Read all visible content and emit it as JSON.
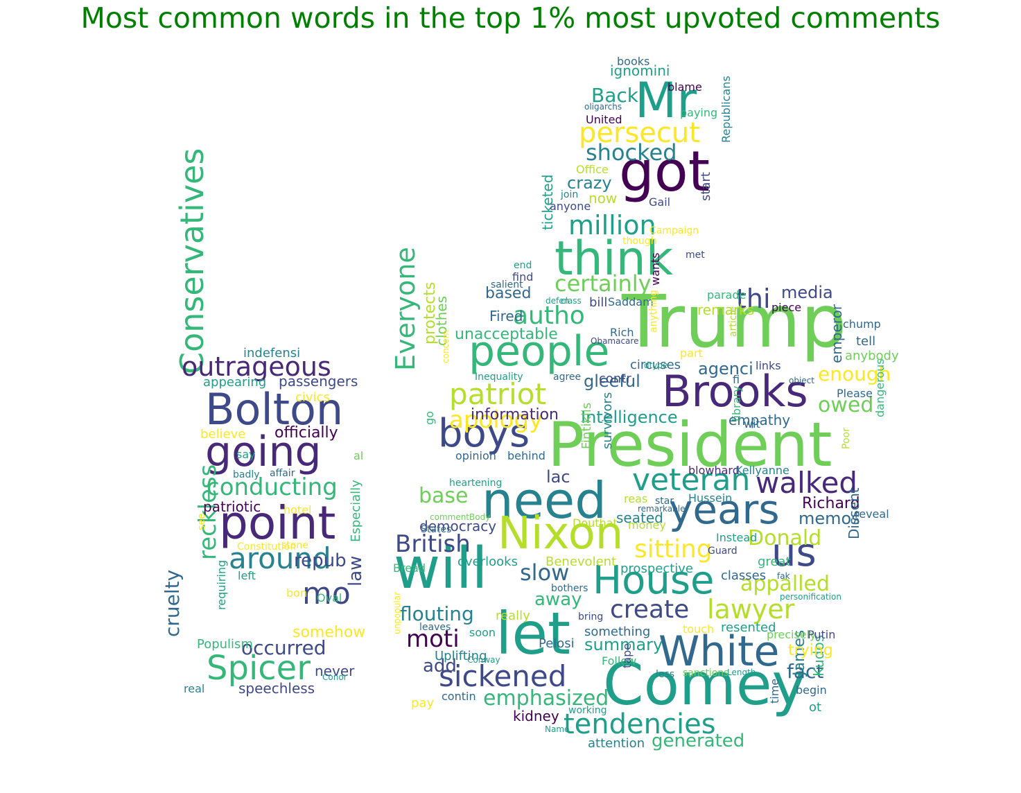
{
  "title": "Most common words in the top 1% most upvoted comments",
  "title_color": "#008000",
  "palette": [
    "#440154",
    "#482878",
    "#3e4989",
    "#31688e",
    "#26828e",
    "#1f9e89",
    "#35b779",
    "#6ece58",
    "#b5de2b",
    "#fde725"
  ],
  "words": [
    {
      "t": "Trump",
      "c": 7
    },
    {
      "t": "President",
      "c": 7
    },
    {
      "t": "Comey",
      "c": 5
    },
    {
      "t": "will",
      "c": 5
    },
    {
      "t": "need",
      "c": 4
    },
    {
      "t": "Nixon",
      "c": 8
    },
    {
      "t": "got",
      "c": 0
    },
    {
      "t": "Mr",
      "c": 5
    },
    {
      "t": "let",
      "c": 5
    },
    {
      "t": "people",
      "c": 6
    },
    {
      "t": "think",
      "c": 6
    },
    {
      "t": "Brooks",
      "c": 1
    },
    {
      "t": "White",
      "c": 3
    },
    {
      "t": "House",
      "c": 5
    },
    {
      "t": "years",
      "c": 3
    },
    {
      "t": "us",
      "c": 2
    },
    {
      "t": "boys",
      "c": 2
    },
    {
      "t": "Bolton",
      "c": 2
    },
    {
      "t": "going",
      "c": 1
    },
    {
      "t": "point",
      "c": 1
    },
    {
      "t": "Spicer",
      "c": 6
    },
    {
      "t": "veteran",
      "c": 5
    },
    {
      "t": "walked",
      "c": 1
    },
    {
      "t": "sickened",
      "c": 2
    },
    {
      "t": "tendencies",
      "c": 5
    },
    {
      "t": "Everyone",
      "c": 6
    },
    {
      "t": "Conservatives",
      "c": 6
    },
    {
      "t": "outrageous",
      "c": 1
    },
    {
      "t": "patriot",
      "c": 8
    },
    {
      "t": "persecut",
      "c": 9
    },
    {
      "t": "million",
      "c": 5
    },
    {
      "t": "around",
      "c": 4
    },
    {
      "t": "mo",
      "c": 2
    },
    {
      "t": "lawyer",
      "c": 8
    },
    {
      "t": "create",
      "c": 2
    },
    {
      "t": "thi",
      "c": 2
    },
    {
      "t": "shocked",
      "c": 4
    },
    {
      "t": "autho",
      "c": 6
    },
    {
      "t": "sitting",
      "c": 9
    },
    {
      "t": "certainly",
      "c": 7
    },
    {
      "t": "conducting",
      "c": 6
    },
    {
      "t": "apology",
      "c": 9
    },
    {
      "t": "British",
      "c": 2
    },
    {
      "t": "moti",
      "c": 0
    },
    {
      "t": "occurred",
      "c": 2
    },
    {
      "t": "emphasized",
      "c": 6
    },
    {
      "t": "slow",
      "c": 3
    },
    {
      "t": "Donald",
      "c": 8
    },
    {
      "t": "appalled",
      "c": 8
    },
    {
      "t": "reckless",
      "c": 6
    },
    {
      "t": "owed",
      "c": 7
    },
    {
      "t": "enough",
      "c": 9
    },
    {
      "t": "fact",
      "c": 3
    },
    {
      "t": "flouting",
      "c": 4
    },
    {
      "t": "generated",
      "c": 6
    },
    {
      "t": "cruelty",
      "c": 3
    },
    {
      "t": "base",
      "c": 7
    },
    {
      "t": "summary",
      "c": 5
    },
    {
      "t": "repub",
      "c": 2
    },
    {
      "t": "Back",
      "c": 5
    },
    {
      "t": "crazy",
      "c": 4
    },
    {
      "t": "memos",
      "c": 3
    },
    {
      "t": "Richard",
      "c": 0
    },
    {
      "t": "gleeful",
      "c": 3
    },
    {
      "t": "Intelligence",
      "c": 5
    },
    {
      "t": "agenci",
      "c": 3
    },
    {
      "t": "media",
      "c": 2
    },
    {
      "t": "away",
      "c": 6
    },
    {
      "t": "lac",
      "c": 2
    },
    {
      "t": "add",
      "c": 2
    },
    {
      "t": "law",
      "c": 2
    },
    {
      "t": "patriotic",
      "c": 0
    },
    {
      "t": "passengers",
      "c": 2
    },
    {
      "t": "officially",
      "c": 0
    },
    {
      "t": "based",
      "c": 3
    },
    {
      "t": "ticketed",
      "c": 5
    },
    {
      "t": "Dissent",
      "c": 3
    },
    {
      "t": "emperor",
      "c": 3
    },
    {
      "t": "information",
      "c": 1
    },
    {
      "t": "unacceptable",
      "c": 6
    },
    {
      "t": "protects",
      "c": 8
    },
    {
      "t": "clothes",
      "c": 7
    },
    {
      "t": "democracy",
      "c": 2
    },
    {
      "t": "indefensi",
      "c": 4
    },
    {
      "t": "Fired",
      "c": 3
    },
    {
      "t": "empathy",
      "c": 3
    },
    {
      "t": "James",
      "c": 4
    },
    {
      "t": "Kudos",
      "c": 6
    },
    {
      "t": "somehow",
      "c": 9
    },
    {
      "t": "speechless",
      "c": 2
    },
    {
      "t": "never",
      "c": 2
    },
    {
      "t": "tell",
      "c": 3
    },
    {
      "t": "anybody",
      "c": 7
    },
    {
      "t": "trying",
      "c": 9
    },
    {
      "t": "appearing",
      "c": 5
    },
    {
      "t": "civics",
      "c": 9
    },
    {
      "t": "believe",
      "c": 9
    },
    {
      "t": "seated",
      "c": 4
    },
    {
      "t": "reas",
      "c": 8
    },
    {
      "t": "money",
      "c": 8
    },
    {
      "t": "ignomini",
      "c": 5
    },
    {
      "t": "now",
      "c": 8
    },
    {
      "t": "start",
      "c": 2
    },
    {
      "t": "Republicans",
      "c": 4
    },
    {
      "t": "bill",
      "c": 2
    },
    {
      "t": "remarks",
      "c": 8
    },
    {
      "t": "wants",
      "c": 0
    },
    {
      "t": "circuses",
      "c": 3
    },
    {
      "t": "contr",
      "c": 2
    },
    {
      "t": "survivors",
      "c": 4
    },
    {
      "t": "Fintiklis",
      "c": 7
    },
    {
      "t": "Uplifting",
      "c": 4
    },
    {
      "t": "kidney",
      "c": 0
    },
    {
      "t": "Pelosi",
      "c": 3
    },
    {
      "t": "attention",
      "c": 4
    },
    {
      "t": "something",
      "c": 3
    },
    {
      "t": "resented",
      "c": 5
    },
    {
      "t": "prospective",
      "c": 5
    },
    {
      "t": "great",
      "c": 6
    },
    {
      "t": "classes",
      "c": 3
    },
    {
      "t": "precisely",
      "c": 7
    },
    {
      "t": "Putin",
      "c": 2
    },
    {
      "t": "begin",
      "c": 3
    },
    {
      "t": "ot",
      "c": 5
    },
    {
      "t": "time",
      "c": 3
    },
    {
      "t": "Bread",
      "c": 6
    },
    {
      "t": "overlooks",
      "c": 5
    },
    {
      "t": "Benevolent",
      "c": 8
    },
    {
      "t": "really",
      "c": 8
    },
    {
      "t": "soon",
      "c": 5
    },
    {
      "t": "bring",
      "c": 2
    },
    {
      "t": "pay",
      "c": 9
    },
    {
      "t": "contin",
      "c": 3
    },
    {
      "t": "Follow",
      "c": 6
    },
    {
      "t": "working",
      "c": 5
    },
    {
      "t": "tape",
      "c": 2
    },
    {
      "t": "less",
      "c": 4
    },
    {
      "t": "sanctions",
      "c": 7
    },
    {
      "t": "touch",
      "c": 9
    },
    {
      "t": "Populism",
      "c": 6
    },
    {
      "t": "Conor",
      "c": 5
    },
    {
      "t": "real",
      "c": 4
    },
    {
      "t": "requiring",
      "c": 5
    },
    {
      "t": "stone",
      "c": 9
    },
    {
      "t": "hotel",
      "c": 9
    },
    {
      "t": "Especially",
      "c": 6
    },
    {
      "t": "al",
      "c": 7
    },
    {
      "t": "badly",
      "c": 4
    },
    {
      "t": "affair",
      "c": 3
    },
    {
      "t": "left",
      "c": 5
    },
    {
      "t": "Oval",
      "c": 6
    },
    {
      "t": "bon",
      "c": 9
    },
    {
      "t": "Constitution",
      "c": 9
    },
    {
      "t": "see",
      "c": 9
    },
    {
      "t": "say",
      "c": 5
    },
    {
      "t": "books",
      "c": 3
    },
    {
      "t": "blame",
      "c": 0
    },
    {
      "t": "oligarchs",
      "c": 3
    },
    {
      "t": "paying",
      "c": 6
    },
    {
      "t": "United",
      "c": 0
    },
    {
      "t": "Office",
      "c": 8
    },
    {
      "t": "Gail",
      "c": 2
    },
    {
      "t": "join",
      "c": 4
    },
    {
      "t": "Campaign",
      "c": 9
    },
    {
      "t": "anyone",
      "c": 2
    },
    {
      "t": "though",
      "c": 9
    },
    {
      "t": "met",
      "c": 2
    },
    {
      "t": "end",
      "c": 5
    },
    {
      "t": "find",
      "c": 2
    },
    {
      "t": "salient",
      "c": 3
    },
    {
      "t": "defen",
      "c": 5
    },
    {
      "t": "class",
      "c": 5
    },
    {
      "t": "Saddam",
      "c": 3
    },
    {
      "t": "parade",
      "c": 6
    },
    {
      "t": "piece",
      "c": 0
    },
    {
      "t": "chump",
      "c": 3
    },
    {
      "t": "Rich",
      "c": 3
    },
    {
      "t": "Obamacare",
      "c": 2
    },
    {
      "t": "anything",
      "c": 9
    },
    {
      "t": "article",
      "c": 8
    },
    {
      "t": "part",
      "c": 9
    },
    {
      "t": "links",
      "c": 2
    },
    {
      "t": "object",
      "c": 3
    },
    {
      "t": "concern",
      "c": 9
    },
    {
      "t": "Inequality",
      "c": 5
    },
    {
      "t": "agree",
      "c": 3
    },
    {
      "t": "fi",
      "c": 3
    },
    {
      "t": "dtype",
      "c": 5
    },
    {
      "t": "Please",
      "c": 3
    },
    {
      "t": "wit",
      "c": 3
    },
    {
      "t": "library",
      "c": 6
    },
    {
      "t": "dangerous",
      "c": 6
    },
    {
      "t": "go",
      "c": 6
    },
    {
      "t": "opinion",
      "c": 3
    },
    {
      "t": "behind",
      "c": 3
    },
    {
      "t": "heartening",
      "c": 5
    },
    {
      "t": "blowhard",
      "c": 1
    },
    {
      "t": "Kellyanne",
      "c": 4
    },
    {
      "t": "Poor",
      "c": 8
    },
    {
      "t": "reveal",
      "c": 3
    },
    {
      "t": "star",
      "c": 3
    },
    {
      "t": "Hussein",
      "c": 4
    },
    {
      "t": "remarkable",
      "c": 3
    },
    {
      "t": "commentBody",
      "c": 7
    },
    {
      "t": "States",
      "c": 3
    },
    {
      "t": "Douthat",
      "c": 8
    },
    {
      "t": "Instead",
      "c": 5
    },
    {
      "t": "Guard",
      "c": 2
    },
    {
      "t": "bothers",
      "c": 3
    },
    {
      "t": "fak",
      "c": 3
    },
    {
      "t": "personification",
      "c": 5
    },
    {
      "t": "unpopular",
      "c": 9
    },
    {
      "t": "Conway",
      "c": 5
    },
    {
      "t": "leaves",
      "c": 3
    },
    {
      "t": "Name",
      "c": 5
    },
    {
      "t": "Length",
      "c": 5
    }
  ]
}
